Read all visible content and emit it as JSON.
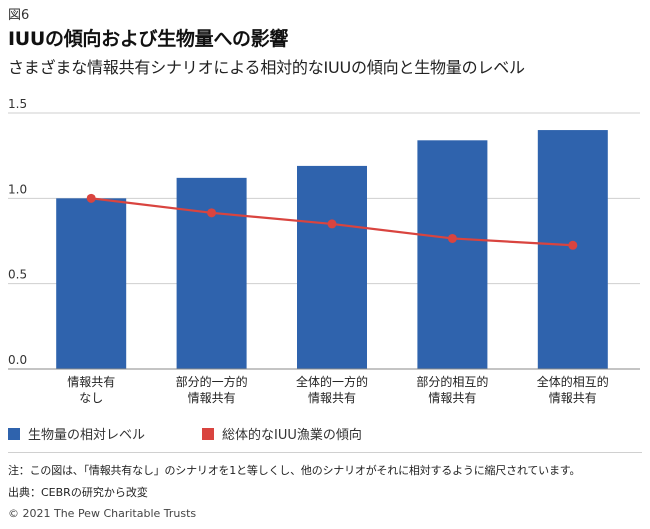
{
  "figure_label": "図6",
  "title": "IUUの傾向および生物量への影響",
  "subtitle": "さまざまな情報共有シナリオによる相対的なIUUの傾向と生物量のレベル",
  "chart_data": {
    "type": "bar",
    "categories": [
      [
        "情報共有",
        "なし"
      ],
      [
        "部分的一方的",
        "情報共有"
      ],
      [
        "全体的一方的",
        "情報共有"
      ],
      [
        "部分的相互的",
        "情報共有"
      ],
      [
        "全体的相互的",
        "情報共有"
      ]
    ],
    "series": [
      {
        "name": "生物量の相対レベル",
        "type": "bar",
        "color": "#2f63ad",
        "values": [
          1.0,
          1.12,
          1.19,
          1.34,
          1.4
        ]
      },
      {
        "name": "総体的なIUU漁業の傾向",
        "type": "line",
        "color": "#d9443f",
        "values": [
          1.0,
          0.915,
          0.85,
          0.765,
          0.725
        ]
      }
    ],
    "y_ticks": [
      "0.0",
      "0.5",
      "1.0",
      "1.5"
    ],
    "ylim": [
      0,
      1.5
    ],
    "grid": true,
    "legend_position": "bottom"
  },
  "legend": [
    {
      "label": "生物量の相対レベル",
      "color": "#2f63ad",
      "shape": "square"
    },
    {
      "label": "総体的なIUU漁業の傾向",
      "color": "#d9443f",
      "shape": "square"
    }
  ],
  "note": "注：この図は、「情報共有なし」のシナリオを1と等しくし、他のシナリオがそれに相対するように縮尺されています。",
  "source": "出典：CEBRの研究から改変",
  "copyright": "© 2021 The Pew Charitable Trusts"
}
